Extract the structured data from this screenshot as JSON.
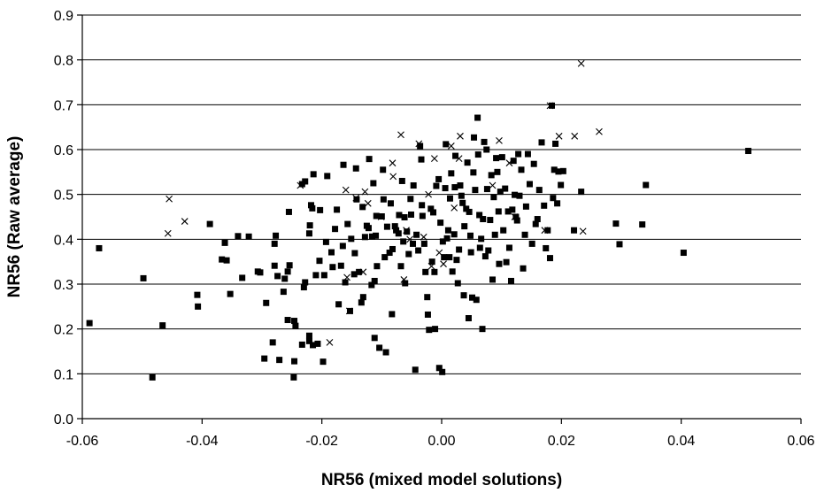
{
  "chart_data": {
    "type": "scatter",
    "title": "",
    "xlabel": "NR56 (mixed model solutions)",
    "ylabel": "NR56 (Raw average)",
    "xlim": [
      -0.06,
      0.06
    ],
    "ylim": [
      0.0,
      0.9
    ],
    "xticks": [
      -0.06,
      -0.04,
      -0.02,
      0.0,
      0.02,
      0.04,
      0.06
    ],
    "xtick_labels": [
      "-0.06",
      "-0.04",
      "-0.02",
      "0.00",
      "0.02",
      "0.04",
      "0.06"
    ],
    "yticks": [
      0.0,
      0.1,
      0.2,
      0.3,
      0.4,
      0.5,
      0.6,
      0.7,
      0.8,
      0.9
    ],
    "ytick_labels": [
      "0.0",
      "0.1",
      "0.2",
      "0.3",
      "0.4",
      "0.5",
      "0.6",
      "0.7",
      "0.8",
      "0.9"
    ],
    "grid": "horizontal",
    "legend": "none",
    "series": [
      {
        "marker": "square",
        "color": "#000000",
        "points": [
          [
            -0.0588,
            0.213
          ],
          [
            -0.0572,
            0.38
          ],
          [
            -0.0498,
            0.313
          ],
          [
            -0.0483,
            0.092
          ],
          [
            -0.0466,
            0.208
          ],
          [
            -0.0408,
            0.276
          ],
          [
            -0.0407,
            0.25
          ],
          [
            -0.0387,
            0.434
          ],
          [
            -0.0367,
            0.355
          ],
          [
            -0.0362,
            0.392
          ],
          [
            -0.0359,
            0.353
          ],
          [
            -0.0353,
            0.278
          ],
          [
            -0.034,
            0.407
          ],
          [
            -0.0333,
            0.314
          ],
          [
            -0.0322,
            0.406
          ],
          [
            -0.0307,
            0.328
          ],
          [
            -0.0303,
            0.326
          ],
          [
            -0.0296,
            0.134
          ],
          [
            -0.0293,
            0.258
          ],
          [
            -0.0282,
            0.17
          ],
          [
            -0.0279,
            0.341
          ],
          [
            -0.0279,
            0.39
          ],
          [
            -0.0277,
            0.408
          ],
          [
            -0.0274,
            0.318
          ],
          [
            -0.0271,
            0.131
          ],
          [
            -0.0264,
            0.283
          ],
          [
            -0.0262,
            0.312
          ],
          [
            -0.0257,
            0.328
          ],
          [
            -0.0257,
            0.22
          ],
          [
            -0.0255,
            0.461
          ],
          [
            -0.0254,
            0.342
          ],
          [
            -0.0247,
            0.092
          ],
          [
            -0.0246,
            0.128
          ],
          [
            -0.0246,
            0.218
          ],
          [
            -0.0244,
            0.207
          ],
          [
            -0.0233,
            0.165
          ],
          [
            -0.0233,
            0.523
          ],
          [
            -0.0228,
            0.529
          ],
          [
            -0.023,
            0.293
          ],
          [
            -0.0228,
            0.304
          ],
          [
            -0.0221,
            0.185
          ],
          [
            -0.0221,
            0.173
          ],
          [
            -0.0215,
            0.164
          ],
          [
            -0.021,
            0.32
          ],
          [
            -0.0221,
            0.413
          ],
          [
            -0.022,
            0.431
          ],
          [
            -0.0216,
            0.469
          ],
          [
            -0.0218,
            0.476
          ],
          [
            -0.0214,
            0.545
          ],
          [
            -0.0207,
            0.167
          ],
          [
            -0.0203,
            0.465
          ],
          [
            -0.0204,
            0.352
          ],
          [
            -0.0198,
            0.127
          ],
          [
            -0.0196,
            0.32
          ],
          [
            -0.0193,
            0.394
          ],
          [
            -0.0191,
            0.541
          ],
          [
            -0.0184,
            0.371
          ],
          [
            -0.0182,
            0.338
          ],
          [
            -0.0178,
            0.423
          ],
          [
            -0.0175,
            0.466
          ],
          [
            -0.0172,
            0.255
          ],
          [
            -0.0168,
            0.341
          ],
          [
            -0.0165,
            0.385
          ],
          [
            -0.0164,
            0.566
          ],
          [
            -0.0161,
            0.304
          ],
          [
            -0.0157,
            0.434
          ],
          [
            -0.0153,
            0.24
          ],
          [
            -0.0151,
            0.401
          ],
          [
            -0.0146,
            0.322
          ],
          [
            -0.0145,
            0.369
          ],
          [
            -0.0143,
            0.558
          ],
          [
            -0.0142,
            0.489
          ],
          [
            -0.0138,
            0.327
          ],
          [
            -0.0134,
            0.259
          ],
          [
            -0.0132,
            0.472
          ],
          [
            -0.0131,
            0.271
          ],
          [
            -0.0128,
            0.405
          ],
          [
            -0.0125,
            0.43
          ],
          [
            -0.0122,
            0.425
          ],
          [
            -0.0121,
            0.579
          ],
          [
            -0.0117,
            0.298
          ],
          [
            -0.0116,
            0.406
          ],
          [
            -0.0114,
            0.525
          ],
          [
            -0.0112,
            0.18
          ],
          [
            -0.0112,
            0.307
          ],
          [
            -0.011,
            0.408
          ],
          [
            -0.0109,
            0.452
          ],
          [
            -0.0108,
            0.34
          ],
          [
            -0.0104,
            0.158
          ],
          [
            -0.01,
            0.451
          ],
          [
            -0.0098,
            0.555
          ],
          [
            -0.0097,
            0.489
          ],
          [
            -0.0095,
            0.36
          ],
          [
            -0.0093,
            0.148
          ],
          [
            -0.0091,
            0.428
          ],
          [
            -0.0087,
            0.37
          ],
          [
            -0.0085,
            0.48
          ],
          [
            -0.0082,
            0.378
          ],
          [
            -0.0083,
            0.233
          ],
          [
            -0.0078,
            0.429
          ],
          [
            -0.0076,
            0.42
          ],
          [
            -0.0072,
            0.413
          ],
          [
            -0.0071,
            0.454
          ],
          [
            -0.0068,
            0.34
          ],
          [
            -0.0066,
            0.53
          ],
          [
            -0.0064,
            0.395
          ],
          [
            -0.0062,
            0.449
          ],
          [
            -0.0061,
            0.302
          ],
          [
            -0.0058,
            0.417
          ],
          [
            -0.0055,
            0.367
          ],
          [
            -0.0052,
            0.49
          ],
          [
            -0.0051,
            0.455
          ],
          [
            -0.0048,
            0.39
          ],
          [
            -0.0047,
            0.52
          ],
          [
            -0.0044,
            0.109
          ],
          [
            -0.0042,
            0.41
          ],
          [
            -0.0039,
            0.375
          ],
          [
            -0.0036,
            0.608
          ],
          [
            -0.0034,
            0.578
          ],
          [
            -0.0033,
            0.476
          ],
          [
            -0.0032,
            0.452
          ],
          [
            -0.0029,
            0.39
          ],
          [
            -0.0027,
            0.327
          ],
          [
            -0.0024,
            0.271
          ],
          [
            -0.0023,
            0.232
          ],
          [
            -0.0021,
            0.198
          ],
          [
            -0.0018,
            0.468
          ],
          [
            -0.0016,
            0.35
          ],
          [
            -0.0014,
            0.46
          ],
          [
            -0.0012,
            0.327
          ],
          [
            -0.0011,
            0.2
          ],
          [
            -0.0009,
            0.519
          ],
          [
            -0.0005,
            0.534
          ],
          [
            -0.0004,
            0.113
          ],
          [
            -0.0002,
            0.437
          ],
          [
            0.0001,
            0.104
          ],
          [
            0.0002,
            0.395
          ],
          [
            0.0004,
            0.36
          ],
          [
            0.0006,
            0.514
          ],
          [
            0.0007,
            0.612
          ],
          [
            0.0009,
            0.402
          ],
          [
            0.0011,
            0.42
          ],
          [
            0.0013,
            0.36
          ],
          [
            0.0014,
            0.491
          ],
          [
            0.0016,
            0.547
          ],
          [
            0.0018,
            0.328
          ],
          [
            0.0021,
            0.411
          ],
          [
            0.0022,
            0.516
          ],
          [
            0.0023,
            0.586
          ],
          [
            0.0025,
            0.354
          ],
          [
            0.0027,
            0.302
          ],
          [
            0.0029,
            0.377
          ],
          [
            0.0031,
            0.52
          ],
          [
            0.0033,
            0.497
          ],
          [
            0.0035,
            0.481
          ],
          [
            0.0037,
            0.275
          ],
          [
            0.0038,
            0.429
          ],
          [
            0.0041,
            0.468
          ],
          [
            0.0043,
            0.571
          ],
          [
            0.0045,
            0.224
          ],
          [
            0.0046,
            0.461
          ],
          [
            0.0048,
            0.408
          ],
          [
            0.0049,
            0.371
          ],
          [
            0.0051,
            0.27
          ],
          [
            0.0053,
            0.549
          ],
          [
            0.0054,
            0.627
          ],
          [
            0.0056,
            0.51
          ],
          [
            0.0058,
            0.265
          ],
          [
            0.006,
            0.671
          ],
          [
            0.0061,
            0.589
          ],
          [
            0.0063,
            0.454
          ],
          [
            0.0064,
            0.381
          ],
          [
            0.0066,
            0.401
          ],
          [
            0.0068,
            0.2
          ],
          [
            0.0069,
            0.445
          ],
          [
            0.0071,
            0.617
          ],
          [
            0.0073,
            0.362
          ],
          [
            0.0075,
            0.6
          ],
          [
            0.0076,
            0.512
          ],
          [
            0.0078,
            0.375
          ],
          [
            0.0081,
            0.443
          ],
          [
            0.0083,
            0.543
          ],
          [
            0.0085,
            0.31
          ],
          [
            0.0087,
            0.494
          ],
          [
            0.0089,
            0.41
          ],
          [
            0.0091,
            0.581
          ],
          [
            0.0093,
            0.55
          ],
          [
            0.0095,
            0.462
          ],
          [
            0.0096,
            0.345
          ],
          [
            0.0098,
            0.506
          ],
          [
            0.0101,
            0.583
          ],
          [
            0.0103,
            0.42
          ],
          [
            0.0106,
            0.513
          ],
          [
            0.0108,
            0.349
          ],
          [
            0.0111,
            0.462
          ],
          [
            0.0113,
            0.381
          ],
          [
            0.0116,
            0.307
          ],
          [
            0.0118,
            0.466
          ],
          [
            0.012,
            0.575
          ],
          [
            0.0122,
            0.499
          ],
          [
            0.0124,
            0.45
          ],
          [
            0.0126,
            0.442
          ],
          [
            0.0128,
            0.59
          ],
          [
            0.013,
            0.497
          ],
          [
            0.0133,
            0.555
          ],
          [
            0.0136,
            0.335
          ],
          [
            0.0139,
            0.41
          ],
          [
            0.0141,
            0.473
          ],
          [
            0.0144,
            0.59
          ],
          [
            0.0147,
            0.523
          ],
          [
            0.0151,
            0.39
          ],
          [
            0.0154,
            0.568
          ],
          [
            0.0157,
            0.434
          ],
          [
            0.016,
            0.445
          ],
          [
            0.0163,
            0.51
          ],
          [
            0.0167,
            0.616
          ],
          [
            0.0171,
            0.475
          ],
          [
            0.0174,
            0.38
          ],
          [
            0.0177,
            0.42
          ],
          [
            0.0181,
            0.358
          ],
          [
            0.0184,
            0.698
          ],
          [
            0.0186,
            0.492
          ],
          [
            0.0188,
            0.555
          ],
          [
            0.019,
            0.613
          ],
          [
            0.0193,
            0.48
          ],
          [
            0.0195,
            0.551
          ],
          [
            0.0199,
            0.521
          ],
          [
            0.0203,
            0.552
          ],
          [
            0.0221,
            0.42
          ],
          [
            0.0233,
            0.506
          ],
          [
            0.0291,
            0.435
          ],
          [
            0.0297,
            0.389
          ],
          [
            0.0335,
            0.433
          ],
          [
            0.0341,
            0.521
          ],
          [
            0.0404,
            0.37
          ],
          [
            0.0512,
            0.597
          ]
        ]
      },
      {
        "marker": "cross",
        "color": "#000000",
        "points": [
          [
            -0.0455,
            0.49
          ],
          [
            -0.0457,
            0.413
          ],
          [
            -0.0429,
            0.44
          ],
          [
            -0.0236,
            0.52
          ],
          [
            -0.0187,
            0.17
          ],
          [
            -0.016,
            0.51
          ],
          [
            -0.0158,
            0.315
          ],
          [
            -0.0154,
            0.24
          ],
          [
            -0.0143,
            0.492
          ],
          [
            -0.0131,
            0.327
          ],
          [
            -0.0128,
            0.506
          ],
          [
            -0.0123,
            0.48
          ],
          [
            -0.0101,
            0.45
          ],
          [
            -0.0082,
            0.57
          ],
          [
            -0.0081,
            0.54
          ],
          [
            -0.0068,
            0.633
          ],
          [
            -0.0063,
            0.31
          ],
          [
            -0.0059,
            0.42
          ],
          [
            -0.0053,
            0.4
          ],
          [
            -0.0038,
            0.613
          ],
          [
            -0.003,
            0.405
          ],
          [
            -0.0022,
            0.5
          ],
          [
            -0.0017,
            0.34
          ],
          [
            -0.0012,
            0.58
          ],
          [
            -0.0004,
            0.37
          ],
          [
            0.0003,
            0.345
          ],
          [
            0.0016,
            0.608
          ],
          [
            0.0021,
            0.47
          ],
          [
            0.0029,
            0.58
          ],
          [
            0.0031,
            0.63
          ],
          [
            0.0085,
            0.52
          ],
          [
            0.0096,
            0.62
          ],
          [
            0.0113,
            0.57
          ],
          [
            0.0122,
            0.45
          ],
          [
            0.0172,
            0.42
          ],
          [
            0.0181,
            0.698
          ],
          [
            0.0196,
            0.63
          ],
          [
            0.0222,
            0.63
          ],
          [
            0.0233,
            0.792
          ],
          [
            0.0236,
            0.418
          ],
          [
            0.0263,
            0.64
          ]
        ]
      }
    ]
  }
}
